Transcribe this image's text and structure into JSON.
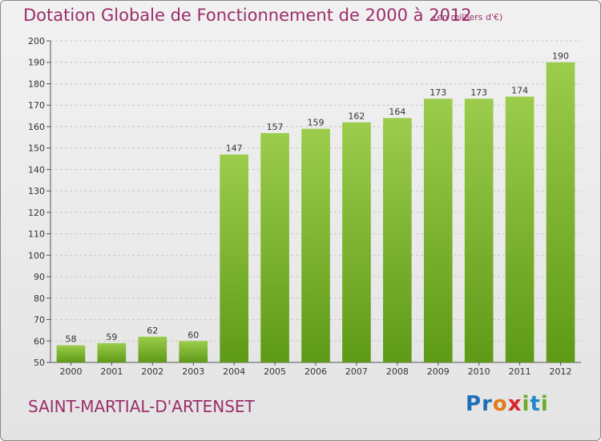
{
  "header": {
    "title": "Dotation Globale de Fonctionnement de 2000 à 2012",
    "unit": "(en milliers d'€)"
  },
  "footer": {
    "commune": "SAINT-MARTIAL-D'ARTENSET",
    "brand_letters": [
      {
        "ch": "P",
        "color": "#1f6fb5"
      },
      {
        "ch": "r",
        "color": "#1f6fb5"
      },
      {
        "ch": "o",
        "color": "#e07b1a"
      },
      {
        "ch": "x",
        "color": "#d7262d"
      },
      {
        "ch": "i",
        "color": "#6aab2a"
      },
      {
        "ch": "t",
        "color": "#1f8ac9"
      },
      {
        "ch": "i",
        "color": "#6aab2a"
      }
    ]
  },
  "colors": {
    "title": "#9b2d6a",
    "bar_top": "#9ccc4c",
    "bar_bottom": "#5e9a17",
    "grid": "#c7c7c7"
  },
  "chart_data": {
    "type": "bar",
    "title": "Dotation Globale de Fonctionnement de 2000 à 2012",
    "subtitle": "(en milliers d'€)",
    "categories": [
      "2000",
      "2001",
      "2002",
      "2003",
      "2004",
      "2005",
      "2006",
      "2007",
      "2008",
      "2009",
      "2010",
      "2011",
      "2012"
    ],
    "values": [
      58,
      59,
      62,
      60,
      147,
      157,
      159,
      162,
      164,
      173,
      173,
      174,
      190
    ],
    "ylim": [
      50,
      200
    ],
    "yticks": [
      50,
      60,
      70,
      80,
      90,
      100,
      110,
      120,
      130,
      140,
      150,
      160,
      170,
      180,
      190,
      200
    ],
    "grid": "horizontal dashed",
    "legend": "none"
  }
}
